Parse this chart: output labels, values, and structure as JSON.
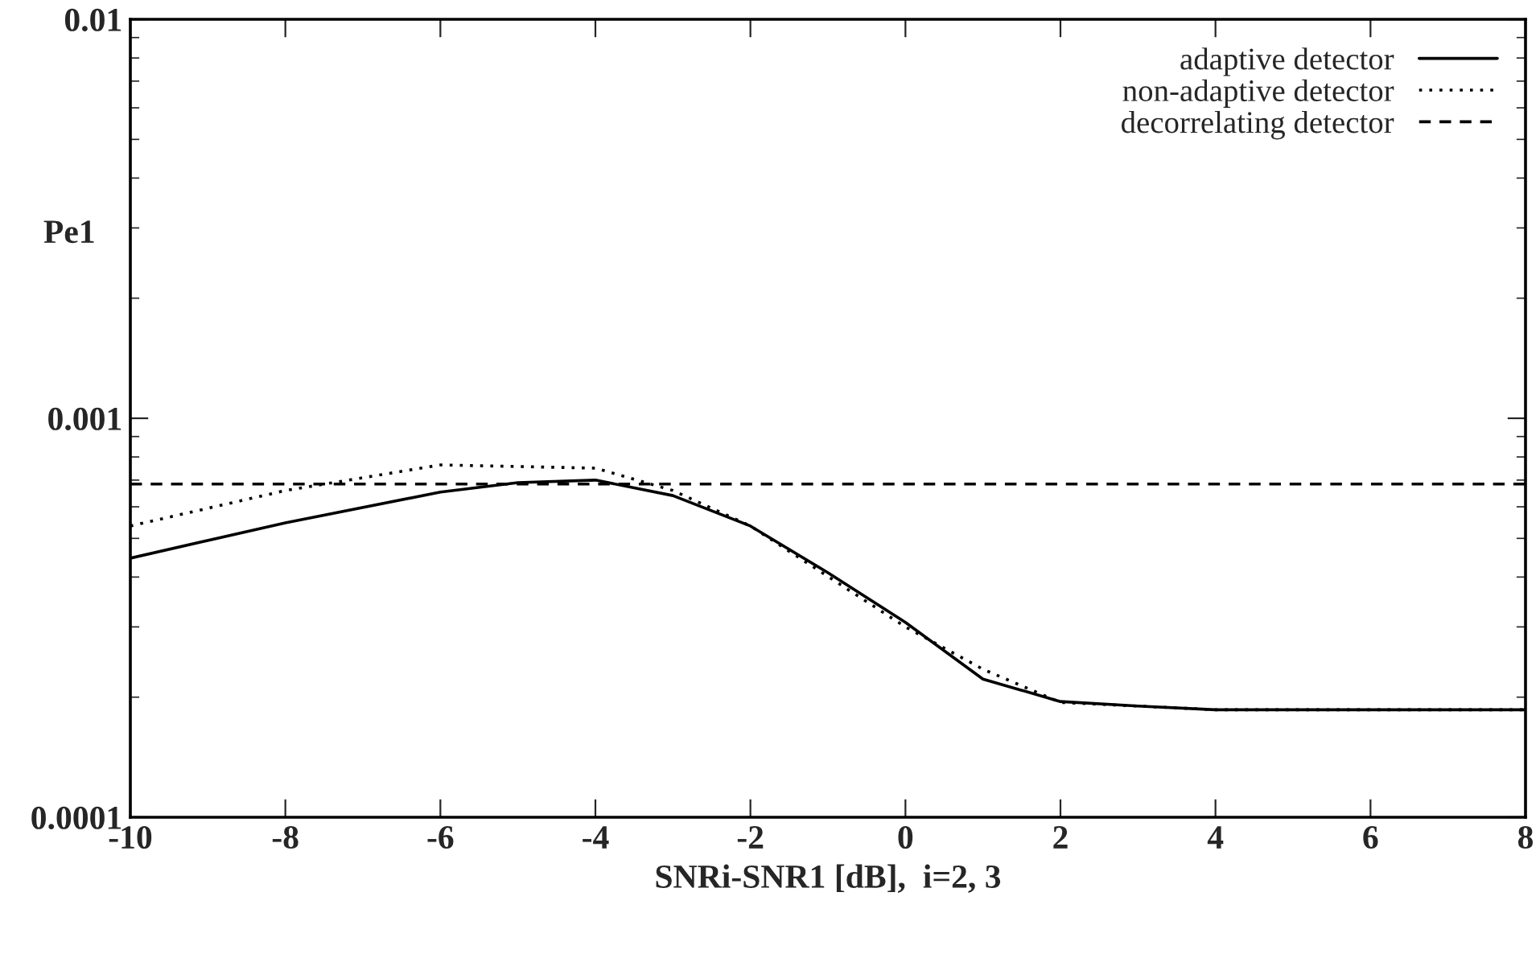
{
  "chart_data": {
    "type": "line",
    "xlabel": "SNRi-SNR1 [dB],  i=2, 3",
    "ylabel": "Pe1",
    "x": [
      -10,
      -8,
      -6,
      -5,
      -4,
      -3,
      -2,
      -1,
      0,
      1,
      2,
      3,
      4,
      6,
      8
    ],
    "series": [
      {
        "name": "adaptive detector",
        "color": "#000000",
        "line_style": "solid",
        "values": [
          0.000446,
          0.000547,
          0.000653,
          0.00069,
          0.0007,
          0.00064,
          0.000537,
          0.00041,
          0.000308,
          0.000222,
          0.000195,
          0.00019,
          0.000186,
          0.000186,
          0.000186
        ]
      },
      {
        "name": "non-adaptive detector",
        "color": "#000000",
        "line_style": "dotted",
        "x": [
          -10,
          -8,
          -6,
          -4,
          -3,
          -2,
          0,
          1,
          2,
          4,
          6,
          8
        ],
        "values": [
          0.000537,
          0.000659,
          0.000764,
          0.00075,
          0.000659,
          0.000537,
          0.0003,
          0.000235,
          0.000194,
          0.000186,
          0.000186,
          0.000186
        ]
      },
      {
        "name": "decorrelating detector",
        "color": "#000000",
        "line_style": "dashed",
        "x": [
          -10,
          8
        ],
        "values": [
          0.000684,
          0.000684
        ]
      }
    ],
    "log": "y",
    "xlim": [
      -10,
      8
    ],
    "xticks": [
      -10,
      -8,
      -6,
      -4,
      -2,
      0,
      2,
      4,
      6,
      8
    ],
    "ylim": [
      0.0001,
      0.01
    ],
    "yticks": [
      0.0001,
      0.001,
      0.01
    ],
    "grid": false,
    "legend": "top right"
  }
}
